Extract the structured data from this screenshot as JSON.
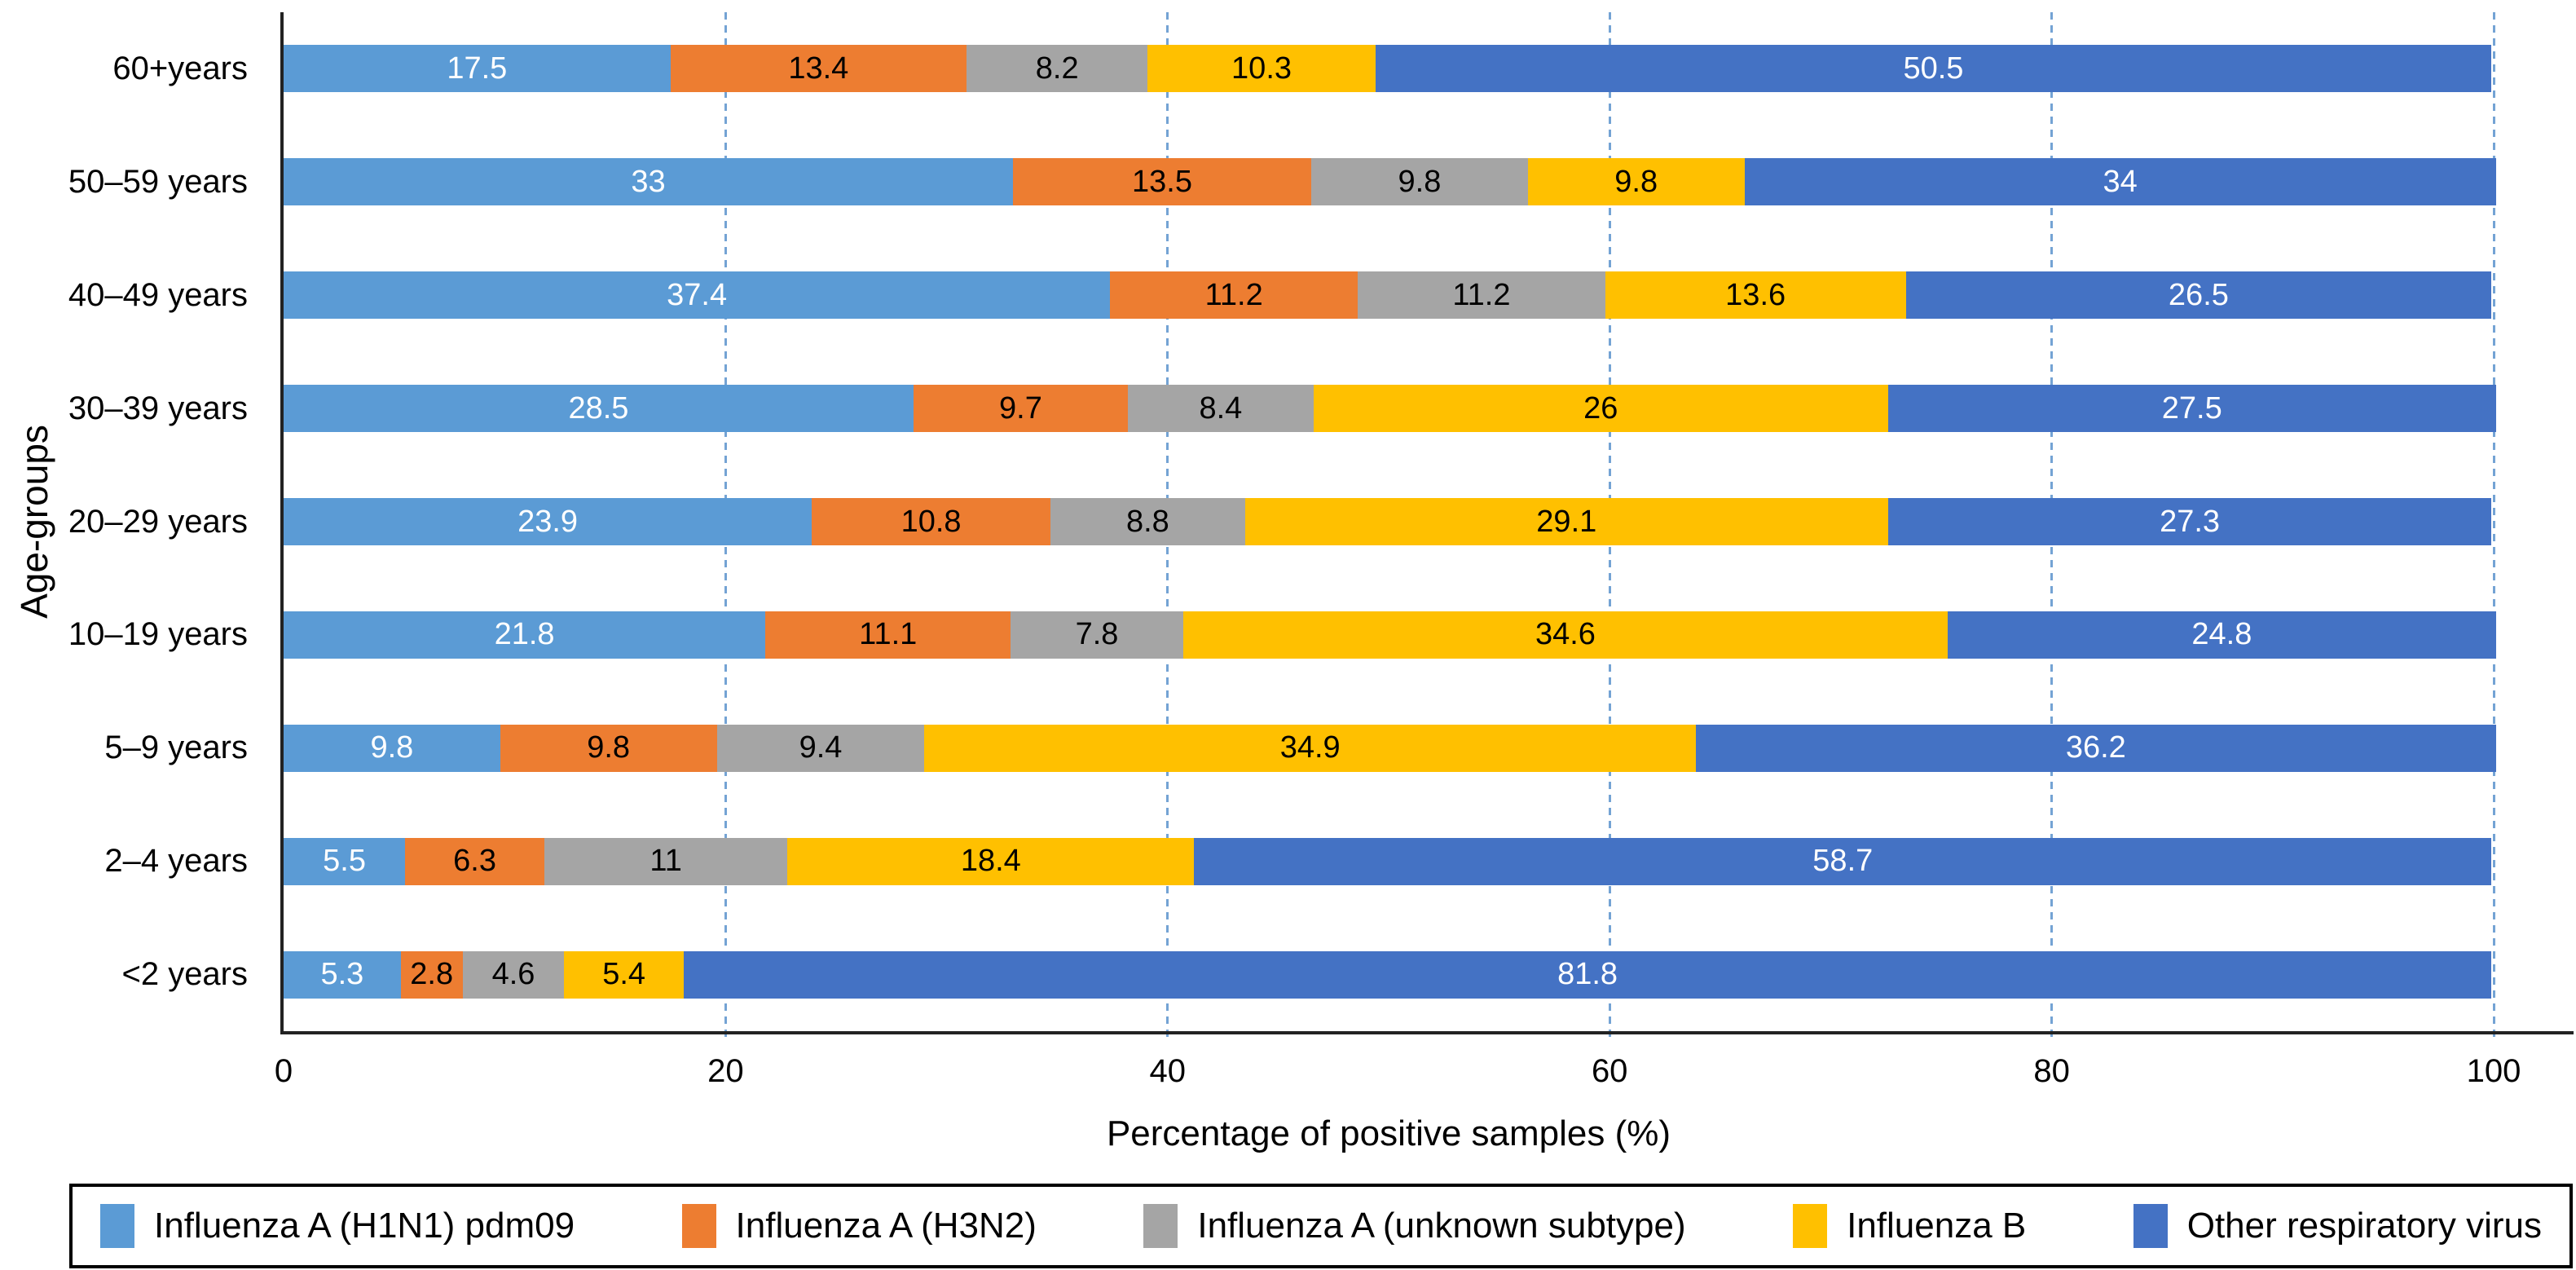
{
  "chart_data": {
    "type": "bar",
    "orientation": "horizontal",
    "stacked": true,
    "title": "",
    "xlabel": "Percentage of positive samples (%)",
    "ylabel": "Age-groups",
    "xlim": [
      0,
      100
    ],
    "xticks": [
      0,
      20,
      40,
      60,
      80,
      100
    ],
    "grid": "vertical-dashed",
    "gridline_values": [
      20,
      40,
      60,
      80,
      100
    ],
    "gridline_color": "#74A3D4",
    "axis_line_color": "#222222",
    "legend_position": "bottom",
    "categories": [
      "60+years",
      "50–59 years",
      "40–49 years",
      "30–39 years",
      "20–29 years",
      "10–19 years",
      "5–9 years",
      "2–4 years",
      "<2 years"
    ],
    "series": [
      {
        "name": "Influenza A (H1N1) pdm09",
        "color": "#5B9BD5",
        "label_color": "#FFFFFF",
        "values": [
          17.5,
          33,
          37.4,
          28.5,
          23.9,
          21.8,
          9.8,
          5.5,
          5.3
        ]
      },
      {
        "name": "Influenza A (H3N2)",
        "color": "#ED7D31",
        "label_color": "#000000",
        "values": [
          13.4,
          13.5,
          11.2,
          9.7,
          10.8,
          11.1,
          9.8,
          6.3,
          2.8
        ]
      },
      {
        "name": "Influenza A (unknown subtype)",
        "color": "#A5A5A5",
        "label_color": "#000000",
        "values": [
          8.2,
          9.8,
          11.2,
          8.4,
          8.8,
          7.8,
          9.4,
          11,
          4.6
        ]
      },
      {
        "name": "Influenza B",
        "color": "#FFC000",
        "label_color": "#000000",
        "values": [
          10.3,
          9.8,
          13.6,
          26,
          29.1,
          34.6,
          34.9,
          18.4,
          5.4
        ]
      },
      {
        "name": "Other respiratory virus",
        "color": "#4472C4",
        "label_color": "#FFFFFF",
        "values": [
          50.5,
          34,
          26.5,
          27.5,
          27.3,
          24.8,
          36.2,
          58.7,
          81.8
        ]
      }
    ]
  }
}
